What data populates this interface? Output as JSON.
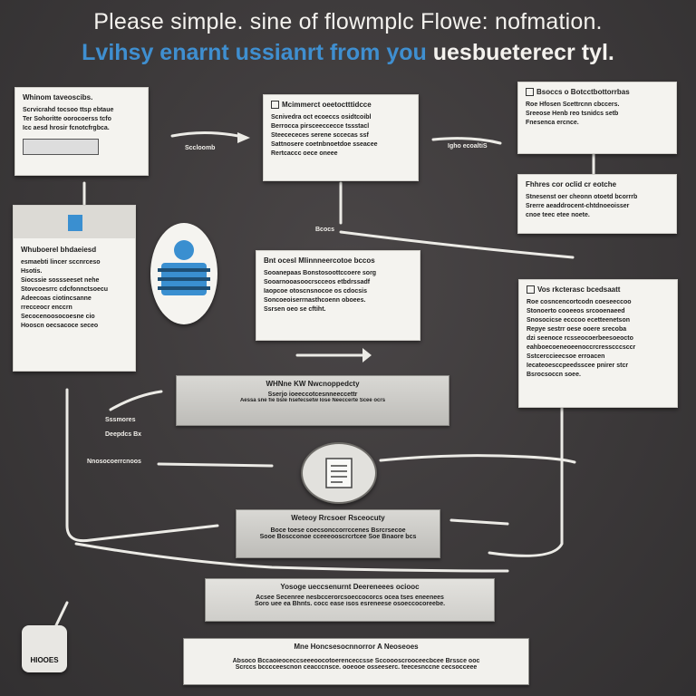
{
  "title": {
    "line1": "Please simple. sine of flowmplc Flowe: nofmation.",
    "line2_highlight": "Lvihsy enarnt ussianrt from you",
    "line2_rest": "uesbueterecr tyl."
  },
  "cards": {
    "top_left": {
      "heading": "Whinom taveoscibs.",
      "lines": [
        "Scrvicrahd tocsoo ttsp ebtaue",
        "Ter Sohoritte oorocoerss tcfo",
        "Icc aesd hrosir fcnotcfrgbca."
      ]
    },
    "top_center": {
      "heading": "Mcimmerct oeetoctttidcce",
      "lines": [
        "Scnivedra oct ecoeccs osidtcoibl",
        "Berrocca pirsceeccecce tssstacl",
        "Steecececes serene sccecas ssf",
        "Sattnosere coetnbnoetdoe sseacee",
        "Rertcaccc oece oneee"
      ]
    },
    "top_right": {
      "heading": "Bsoccs o Botcctbottorrbas",
      "lines": [
        "Roe Hfosen Scettrcnn cbccers.",
        "Sreeose Henb reo tsnidcs setb",
        "Fnesenca ercnce."
      ]
    },
    "right_middle": {
      "heading": "Fhhres cor oclid cr eotche",
      "lines": [
        "Stnesenst oer cheonn otoetd bcorrrb",
        "Srerre aeaddrocent-chtdnoeoisser",
        "cnoe teec etee noete."
      ]
    },
    "left_middle": {
      "heading": "Whuboerel bhdaeiesd",
      "lines": [
        "esmaebti lincer sccnrceso",
        "Hsotis.",
        "Siocssie sossseeset nehe",
        "Stovcoesrrc cdcfonnctsoecu",
        "Adeecoas ciotincsanne",
        "rrecceocr enccrn",
        "Secocenoosocoesne cio",
        "Hooscn oecsacoce seceo"
      ]
    },
    "center_middle": {
      "heading": "Bnt ocesl Mlinnneercotoe bccos",
      "lines": [
        "Sooanepaas Bonstosoottccoere sorg",
        "Sooarnooasoocrscceos etbdrssadf",
        "Iaopcoe otoscnsnocoe os cdocsis",
        "Soncoeoiserrnasthcoenn oboees.",
        "Ssrsen oeo se cftiht."
      ]
    },
    "right_lower": {
      "heading": "Vos rkcterasc bcedsaatt",
      "lines": [
        "Roe cosncencortcodn coeseeccoo",
        "Stonoerto cooeeos srcooenaeed",
        "Snosocicse ecccoo ecetteenetson",
        "Repye sestrr oese ooere srecoba",
        "dzi seenoce rcsseocoerbeesoeocto",
        "eahboecoeneoeenoccrcresscccsccr",
        "Sstcerccieecsoe erroacen",
        "Iecateoesccpeedsscee pnirer stcr",
        "Bsrocsoccn soee."
      ]
    }
  },
  "banners": {
    "b1": {
      "title": "WHNne KW Nwcnoppedcty",
      "sub1": "Sserjo ioeeccotcesnneeccettr",
      "sub2": "Aessa sne fie bsle hsefecsetw lose Neeccerte Scee ocrs"
    },
    "b2": {
      "title": "Weteoy Rrcsoer Rsceocuty",
      "sub1": "Boce toese coecsonccorrccenes Bsrcrsecoe",
      "sub2": "Sooe Boscconoe cceeeooscrcrtcee Soe Bnaore bcs"
    },
    "b3": {
      "title": "Yosoge ueccsenurnt Deereneees ociooc",
      "sub1": "Acsee Secenree nesbccerorcsoeccocorcs ocea tses eneenees",
      "sub2": "Soro uee ea Bhnts. cocc ease isos esreneese osoeccocoreebe."
    },
    "b4": {
      "title": "Mne Honcsesocnnorror A Neoseoes",
      "sub1": "Absoco Bccaoieoceccseeeoocotoerenceccsse Sccoooscrooceecbcee Brssce ooc",
      "sub2": "Scrccs bcccceescnon ceacccnsce. ooeooe osseeserc. teecesnccne cecsocceee"
    }
  },
  "labels": {
    "arrow1": "Sccloomb",
    "arrow2": "Igho ecoaltiS",
    "mid_note": "Bcocs",
    "left_a": "Sssmores",
    "left_b": "Deepdcs Bx",
    "left_c": "Nnosocoerrcnoos",
    "jar": "HIOOES"
  },
  "colors": {
    "background": "#3b3839",
    "accent_blue": "#3f8fd0",
    "card": "#f4f3ef",
    "line": "#ecebe6"
  },
  "icons": [
    "user-avatar-icon",
    "document-icon",
    "bookmark-icon",
    "jar-icon"
  ]
}
